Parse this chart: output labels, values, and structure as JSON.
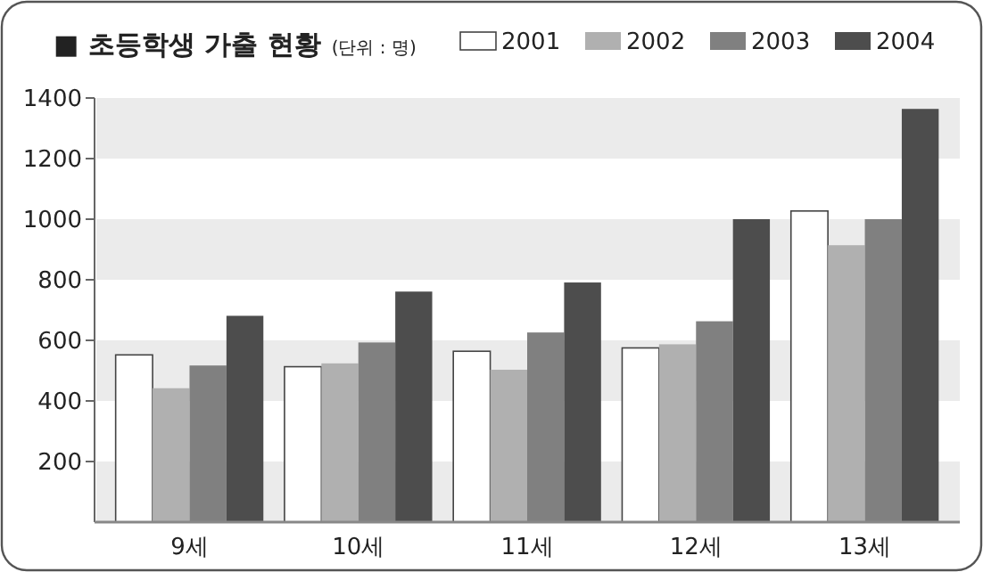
{
  "chart_data": {
    "type": "bar",
    "title": "■ 초등학생 가출 현황",
    "subtitle": "(단위 : 명)",
    "categories": [
      "9세",
      "10세",
      "11세",
      "12세",
      "13세"
    ],
    "series": [
      {
        "name": "2001",
        "color": "#ffffff",
        "values": [
          552,
          513,
          564,
          575,
          1027
        ]
      },
      {
        "name": "2002",
        "color": "#b0b0b0",
        "values": [
          442,
          524,
          503,
          587,
          914
        ]
      },
      {
        "name": "2003",
        "color": "#808080",
        "values": [
          517,
          593,
          626,
          663,
          1000
        ]
      },
      {
        "name": "2004",
        "color": "#4d4d4d",
        "values": [
          681,
          761,
          791,
          1000,
          1364
        ]
      }
    ],
    "ylim": [
      0,
      1400
    ],
    "yticks": [
      200,
      400,
      600,
      800,
      1000,
      1200,
      1400
    ],
    "legend": "top right",
    "bands": [
      {
        "axis": "y",
        "from": 0,
        "to": 200,
        "color": "#ebebeb"
      },
      {
        "axis": "y",
        "from": 400,
        "to": 600,
        "color": "#ebebeb"
      },
      {
        "axis": "y",
        "from": 800,
        "to": 1000,
        "color": "#ebebeb"
      },
      {
        "axis": "y",
        "from": 1200,
        "to": 1400,
        "color": "#ebebeb"
      }
    ]
  }
}
